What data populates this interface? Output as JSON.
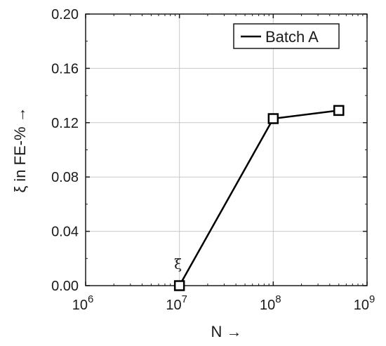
{
  "chart_data": {
    "type": "line",
    "xscale": "log",
    "xlim": [
      1000000,
      1000000000
    ],
    "ylim": [
      0,
      0.2
    ],
    "xticks": [
      {
        "value": 1000000,
        "base": "10",
        "exp": "6"
      },
      {
        "value": 10000000,
        "base": "10",
        "exp": "7"
      },
      {
        "value": 100000000,
        "base": "10",
        "exp": "8"
      },
      {
        "value": 1000000000,
        "base": "10",
        "exp": "9"
      }
    ],
    "yticks": [
      0.0,
      0.04,
      0.08,
      0.12,
      0.16,
      0.2
    ],
    "ytick_labels": [
      "0.00",
      "0.04",
      "0.08",
      "0.12",
      "0.16",
      "0.20"
    ],
    "xlabel": "N →",
    "ylabel": "ξ in FE-% →",
    "grid": true,
    "legend_position": "top-right",
    "series": [
      {
        "name": "Batch A",
        "color": "#000000",
        "marker": "open-square",
        "x": [
          10000000,
          100000000,
          500000000
        ],
        "y": [
          0.0,
          0.123,
          0.129
        ]
      }
    ],
    "annotations": [
      {
        "text": "ξ",
        "x": 10000000,
        "y": 0.0
      }
    ]
  }
}
